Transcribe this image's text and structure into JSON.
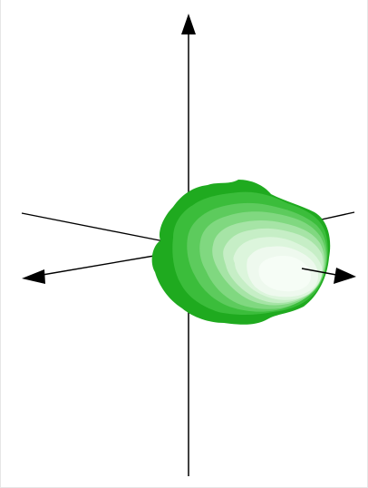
{
  "scene": {
    "object": "3d-shape",
    "axes": [
      "vertical-axis",
      "horizontal-axis-left",
      "horizontal-axis-right"
    ]
  },
  "colors": {
    "background": "#ffffff",
    "axis": "#000000",
    "shape_shades": [
      "#1fb01f",
      "#39be39",
      "#56c956",
      "#76d576",
      "#98e198",
      "#b9ebb9",
      "#d3f3d3",
      "#e9f8e9",
      "#f4fcf4"
    ]
  }
}
